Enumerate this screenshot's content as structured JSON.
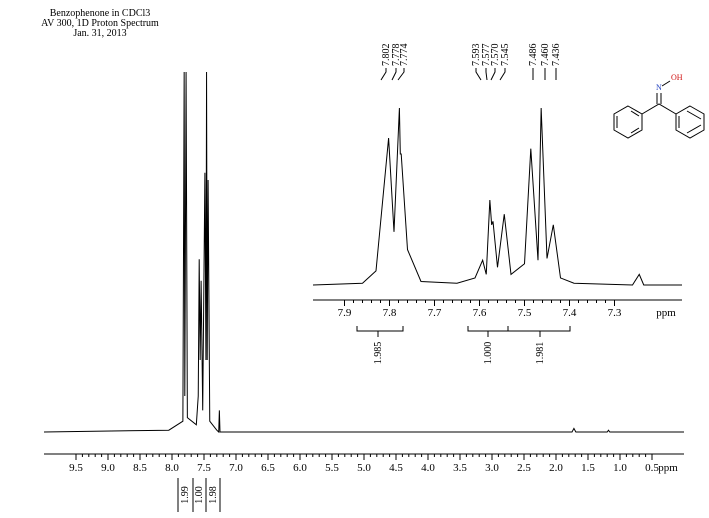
{
  "chart_data": [
    {
      "type": "line",
      "title": [
        "Benzophenone in CDCl3",
        "AV 300, 1D Proton Spectrum",
        "Jan. 31, 2013"
      ],
      "x_label": "ppm",
      "x": [
        10,
        8.05,
        7.83,
        7.81,
        7.8,
        7.78,
        7.76,
        7.62,
        7.59,
        7.575,
        7.56,
        7.545,
        7.52,
        7.486,
        7.47,
        7.46,
        7.45,
        7.436,
        7.41,
        7.3,
        7.27,
        7.26,
        7.25,
        5,
        1.75,
        1.72,
        1.69,
        1.2,
        1.18,
        1.16,
        0
      ],
      "y": [
        0,
        0.5,
        3,
        100,
        10,
        100,
        4,
        2,
        10,
        48,
        20,
        42,
        6,
        72,
        20,
        100,
        20,
        70,
        3,
        0.5,
        0,
        6,
        0,
        0,
        0,
        1,
        0,
        0,
        0.5,
        0,
        0
      ],
      "color": "#000000",
      "xlim": [
        10,
        0
      ],
      "ylim": [
        0,
        100
      ],
      "xticks": [
        9.5,
        {
          "value": 9,
          "label": "9.0"
        },
        8.5,
        {
          "value": 8,
          "label": "8.0"
        },
        7.5,
        {
          "value": 7,
          "label": "7.0"
        },
        6.5,
        {
          "value": 6,
          "label": "6.0"
        },
        5.5,
        {
          "value": 5,
          "label": "5.0"
        },
        4.5,
        {
          "value": 4,
          "label": "4.0"
        },
        3.5,
        {
          "value": 3,
          "label": "3.0"
        },
        2.5,
        {
          "value": 2,
          "label": "2.0"
        },
        1.5,
        {
          "value": 1,
          "label": "1.0"
        },
        0.5
      ],
      "integrals": [
        "1.99",
        "1.00",
        "1.98"
      ]
    },
    {
      "type": "line",
      "x_label": "ppm",
      "x": [
        7.97,
        7.86,
        7.83,
        7.802,
        7.79,
        7.778,
        7.776,
        7.774,
        7.76,
        7.73,
        7.65,
        7.61,
        7.593,
        7.585,
        7.577,
        7.573,
        7.57,
        7.56,
        7.545,
        7.53,
        7.5,
        7.486,
        7.47,
        7.463,
        7.45,
        7.436,
        7.42,
        7.39,
        7.26,
        7.245,
        7.235,
        7.15
      ],
      "y": [
        0,
        1,
        8,
        83,
        30,
        100,
        74,
        74,
        20,
        2,
        1,
        4,
        14,
        6,
        48,
        34,
        36,
        10,
        40,
        6,
        12,
        77,
        14,
        100,
        15,
        34,
        4,
        1,
        0,
        6,
        0,
        0
      ],
      "color": "#000000",
      "xlim": [
        7.97,
        7.15
      ],
      "ylim": [
        0,
        100
      ],
      "xticks": [
        7.9,
        7.8,
        7.7,
        7.6,
        7.5,
        7.4,
        7.3
      ],
      "peak_labels": [
        "7.802",
        "7.778",
        "7.774",
        "7.593",
        "7.577",
        "7.570",
        "7.545",
        "7.486",
        "7.460",
        "7.436"
      ],
      "integrals": [
        "1.985",
        "1.000",
        "1.981"
      ]
    }
  ],
  "structure": {
    "atoms": [
      "N",
      "OH"
    ]
  }
}
